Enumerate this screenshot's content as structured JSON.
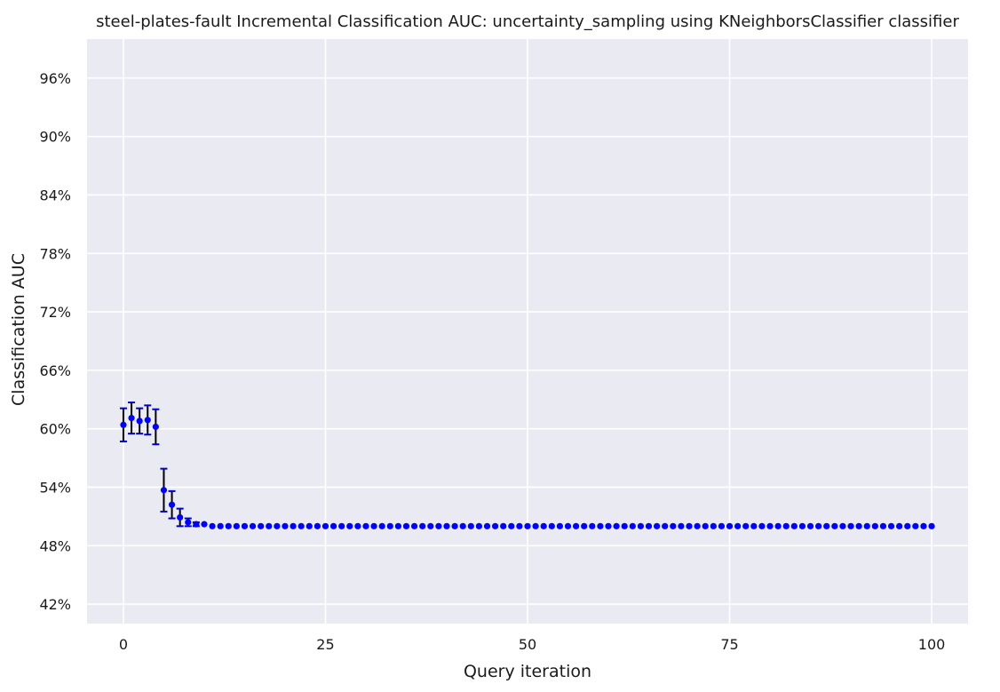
{
  "chart_data": {
    "type": "scatter",
    "title": "steel-plates-fault Incremental Classification AUC: uncertainty_sampling using KNeighborsClassifier classifier",
    "xlabel": "Query iteration",
    "ylabel": "Classification AUC",
    "xlim": [
      -4.5,
      104.5
    ],
    "ylim": [
      0.4,
      1.0
    ],
    "xticks": [
      0,
      25,
      50,
      75,
      100
    ],
    "xtick_labels": [
      "0",
      "25",
      "50",
      "75",
      "100"
    ],
    "yticks": [
      0.42,
      0.48,
      0.54,
      0.6,
      0.66,
      0.72,
      0.78,
      0.84,
      0.9,
      0.96
    ],
    "ytick_labels": [
      "42%",
      "48%",
      "54%",
      "60%",
      "66%",
      "72%",
      "78%",
      "84%",
      "90%",
      "96%"
    ],
    "grid": true,
    "background_color": "#eaeaf2",
    "marker_color": "#0000ff",
    "errorbar_color": "#000000",
    "errorbar_cap_color": "#0000cc",
    "series": [
      {
        "x": [
          0,
          1,
          2,
          3,
          4,
          5,
          6,
          7,
          8,
          9,
          10,
          11,
          12,
          13,
          14,
          15,
          16,
          17,
          18,
          19,
          20,
          21,
          22,
          23,
          24,
          25,
          26,
          27,
          28,
          29,
          30,
          31,
          32,
          33,
          34,
          35,
          36,
          37,
          38,
          39,
          40,
          41,
          42,
          43,
          44,
          45,
          46,
          47,
          48,
          49,
          50,
          51,
          52,
          53,
          54,
          55,
          56,
          57,
          58,
          59,
          60,
          61,
          62,
          63,
          64,
          65,
          66,
          67,
          68,
          69,
          70,
          71,
          72,
          73,
          74,
          75,
          76,
          77,
          78,
          79,
          80,
          81,
          82,
          83,
          84,
          85,
          86,
          87,
          88,
          89,
          90,
          91,
          92,
          93,
          94,
          95,
          96,
          97,
          98,
          99,
          100
        ],
        "y": [
          0.604,
          0.611,
          0.608,
          0.609,
          0.602,
          0.537,
          0.522,
          0.509,
          0.504,
          0.502,
          0.502,
          0.5,
          0.5,
          0.5,
          0.5,
          0.5,
          0.5,
          0.5,
          0.5,
          0.5,
          0.5,
          0.5,
          0.5,
          0.5,
          0.5,
          0.5,
          0.5,
          0.5,
          0.5,
          0.5,
          0.5,
          0.5,
          0.5,
          0.5,
          0.5,
          0.5,
          0.5,
          0.5,
          0.5,
          0.5,
          0.5,
          0.5,
          0.5,
          0.5,
          0.5,
          0.5,
          0.5,
          0.5,
          0.5,
          0.5,
          0.5,
          0.5,
          0.5,
          0.5,
          0.5,
          0.5,
          0.5,
          0.5,
          0.5,
          0.5,
          0.5,
          0.5,
          0.5,
          0.5,
          0.5,
          0.5,
          0.5,
          0.5,
          0.5,
          0.5,
          0.5,
          0.5,
          0.5,
          0.5,
          0.5,
          0.5,
          0.5,
          0.5,
          0.5,
          0.5,
          0.5,
          0.5,
          0.5,
          0.5,
          0.5,
          0.5,
          0.5,
          0.5,
          0.5,
          0.5,
          0.5,
          0.5,
          0.5,
          0.5,
          0.5,
          0.5,
          0.5,
          0.5,
          0.5,
          0.5,
          0.5
        ],
        "err": [
          0.017,
          0.016,
          0.013,
          0.015,
          0.018,
          0.022,
          0.014,
          0.009,
          0.004,
          0.002,
          0.001,
          0,
          0,
          0,
          0,
          0,
          0,
          0,
          0,
          0,
          0,
          0,
          0,
          0,
          0,
          0,
          0,
          0,
          0,
          0,
          0,
          0,
          0,
          0,
          0,
          0,
          0,
          0,
          0,
          0,
          0,
          0,
          0,
          0,
          0,
          0,
          0,
          0,
          0,
          0,
          0,
          0,
          0,
          0,
          0,
          0,
          0,
          0,
          0,
          0,
          0,
          0,
          0,
          0,
          0,
          0,
          0,
          0,
          0,
          0,
          0,
          0,
          0,
          0,
          0,
          0,
          0,
          0,
          0,
          0,
          0,
          0,
          0,
          0,
          0,
          0,
          0,
          0,
          0,
          0,
          0,
          0,
          0,
          0,
          0,
          0,
          0,
          0,
          0,
          0,
          0
        ]
      }
    ]
  }
}
